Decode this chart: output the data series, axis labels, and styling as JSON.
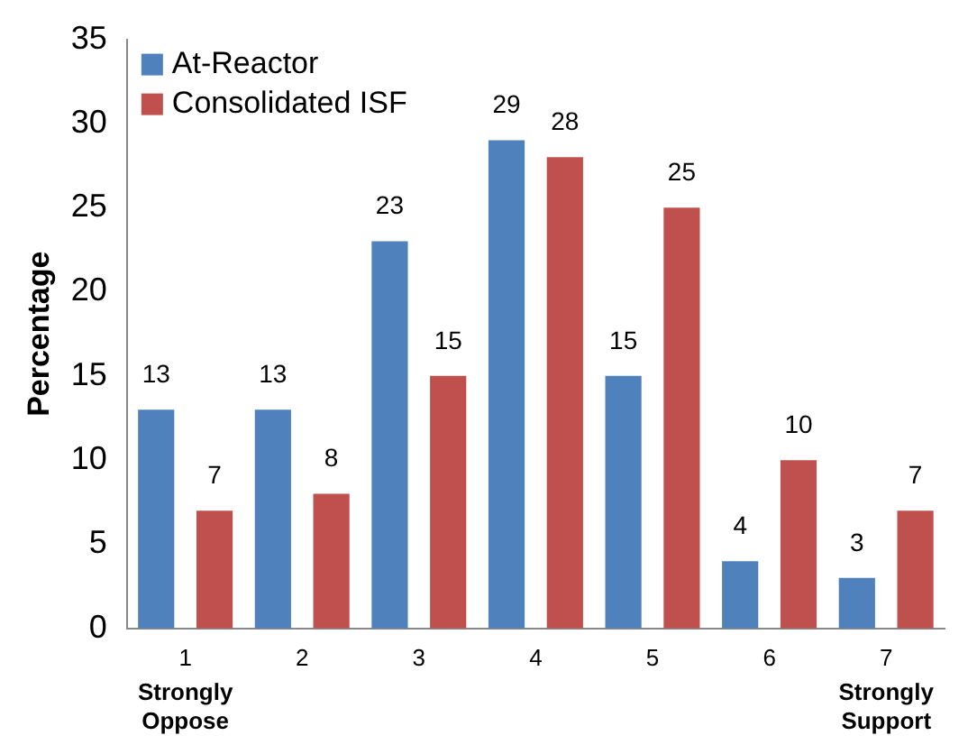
{
  "chart_data": {
    "type": "bar",
    "ylabel": "Percentage",
    "categories": [
      "1",
      "2",
      "3",
      "4",
      "5",
      "6",
      "7"
    ],
    "series": [
      {
        "name": "At-Reactor",
        "color": "#4f81bd",
        "values": [
          13,
          13,
          23,
          29,
          15,
          4,
          3
        ]
      },
      {
        "name": "Consolidated ISF",
        "color": "#c0504d",
        "values": [
          7,
          8,
          15,
          28,
          25,
          10,
          7
        ]
      }
    ],
    "ylim": [
      0,
      35
    ],
    "yticks": [
      0,
      5,
      10,
      15,
      20,
      25,
      30,
      35
    ],
    "grid": false,
    "legend": "top left",
    "data_labels": true,
    "annotations": [
      "Strongly Oppose",
      "Strongly Support"
    ]
  }
}
